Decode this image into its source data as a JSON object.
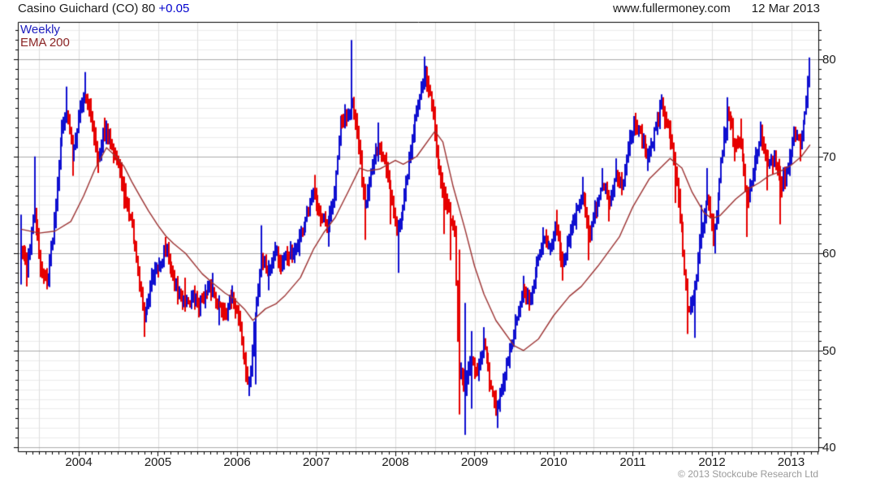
{
  "header": {
    "title": "Casino Guichard (CO) 80 ",
    "change": "+0.05",
    "website": "www.fullermoney.com",
    "date": "12 Mar 2013"
  },
  "legend": {
    "series1": "Weekly",
    "series2": "EMA 200"
  },
  "footer": {
    "copyright": "© 2013 Stockcube Research Ltd"
  },
  "chart_data": {
    "type": "line",
    "style": "weekly_ohlc_bars_with_ema_overlay",
    "title": "Casino Guichard (CO)",
    "last_price": "80",
    "last_change": "+0.05",
    "grid": "on",
    "legend_position": "top-left-inside",
    "colors": {
      "up_bar": "#0f0fd0",
      "down_bar": "#e60000",
      "ema_line": "#9c3232",
      "legend_weekly": "#2020c0",
      "legend_ema": "#8b2525",
      "change_text": "#0000cd"
    },
    "x_axis": {
      "range": [
        2003.23,
        2013.34
      ],
      "tick_years": [
        2004,
        2005,
        2006,
        2007,
        2008,
        2009,
        2010,
        2011,
        2012,
        2013
      ],
      "minor_tick": "monthly",
      "gridline_step_years": 0.5
    },
    "y_axis": {
      "side": "right",
      "range": [
        39.6,
        83.9
      ],
      "ticks": [
        40,
        50,
        60,
        70,
        80
      ],
      "minor_step": 1
    },
    "series": [
      {
        "name": "Weekly",
        "kind": "price_bars",
        "point_format": [
          "t_decimal_year",
          "close",
          "spike_high",
          "spike_low"
        ],
        "points": [
          [
            2003.27,
            60.5,
            64,
            56.8
          ],
          [
            2003.35,
            58.5,
            null,
            56.6
          ],
          [
            2003.44,
            64.5,
            70,
            null
          ],
          [
            2003.52,
            58.5,
            null,
            null
          ],
          [
            2003.6,
            57,
            null,
            56.3
          ],
          [
            2003.69,
            63,
            null,
            null
          ],
          [
            2003.77,
            72,
            null,
            null
          ],
          [
            2003.85,
            75,
            77.2,
            null
          ],
          [
            2003.92,
            70,
            null,
            68
          ],
          [
            2004.02,
            75,
            null,
            null
          ],
          [
            2004.08,
            76.5,
            78.7,
            null
          ],
          [
            2004.17,
            73.5,
            null,
            null
          ],
          [
            2004.25,
            69.5,
            null,
            68.3
          ],
          [
            2004.33,
            72.8,
            74,
            null
          ],
          [
            2004.42,
            71.5,
            null,
            null
          ],
          [
            2004.5,
            69,
            null,
            null
          ],
          [
            2004.58,
            66,
            null,
            64.6
          ],
          [
            2004.67,
            63,
            null,
            null
          ],
          [
            2004.75,
            58,
            null,
            null
          ],
          [
            2004.83,
            53.5,
            null,
            51.4
          ],
          [
            2004.92,
            57,
            58.5,
            null
          ],
          [
            2005.0,
            58.5,
            null,
            null
          ],
          [
            2005.1,
            60.5,
            61.7,
            null
          ],
          [
            2005.19,
            57.5,
            null,
            null
          ],
          [
            2005.27,
            55.5,
            null,
            null
          ],
          [
            2005.35,
            55,
            57.5,
            54
          ],
          [
            2005.44,
            55.3,
            null,
            null
          ],
          [
            2005.52,
            54.8,
            null,
            53.4
          ],
          [
            2005.6,
            55.8,
            null,
            null
          ],
          [
            2005.69,
            56,
            58,
            null
          ],
          [
            2005.77,
            54.5,
            null,
            52.6
          ],
          [
            2005.85,
            54.2,
            null,
            null
          ],
          [
            2005.94,
            55.3,
            56.5,
            null
          ],
          [
            2006.02,
            53.5,
            null,
            null
          ],
          [
            2006.08,
            49.5,
            null,
            null
          ],
          [
            2006.15,
            46.3,
            null,
            45.3
          ],
          [
            2006.23,
            53.5,
            null,
            46.5
          ],
          [
            2006.31,
            59.5,
            62.9,
            null
          ],
          [
            2006.4,
            58,
            null,
            56.2
          ],
          [
            2006.48,
            60.5,
            61.2,
            null
          ],
          [
            2006.56,
            58.5,
            null,
            null
          ],
          [
            2006.65,
            60,
            null,
            null
          ],
          [
            2006.73,
            59.8,
            null,
            59
          ],
          [
            2006.81,
            62,
            null,
            null
          ],
          [
            2006.9,
            64.5,
            null,
            null
          ],
          [
            2006.98,
            66.5,
            68.1,
            null
          ],
          [
            2007.06,
            63.5,
            null,
            null
          ],
          [
            2007.15,
            62.5,
            null,
            60.7
          ],
          [
            2007.23,
            66,
            null,
            null
          ],
          [
            2007.31,
            73.5,
            null,
            null
          ],
          [
            2007.4,
            74.5,
            null,
            null
          ],
          [
            2007.45,
            76,
            82,
            null
          ],
          [
            2007.53,
            71.5,
            null,
            null
          ],
          [
            2007.62,
            65,
            null,
            61.4
          ],
          [
            2007.7,
            68.5,
            null,
            null
          ],
          [
            2007.78,
            71,
            73.5,
            null
          ],
          [
            2007.87,
            69.5,
            null,
            null
          ],
          [
            2007.95,
            66,
            null,
            63
          ],
          [
            2008.03,
            62,
            null,
            58
          ],
          [
            2008.12,
            66.5,
            null,
            null
          ],
          [
            2008.2,
            71,
            null,
            null
          ],
          [
            2008.28,
            75.5,
            null,
            null
          ],
          [
            2008.37,
            78.3,
            80.3,
            null
          ],
          [
            2008.45,
            76,
            null,
            null
          ],
          [
            2008.53,
            70.5,
            null,
            null
          ],
          [
            2008.62,
            65.5,
            null,
            62
          ],
          [
            2008.7,
            63.5,
            null,
            59.3
          ],
          [
            2008.75,
            62.5,
            62.9,
            null
          ],
          [
            2008.8,
            48,
            60.4,
            43.4
          ],
          [
            2008.88,
            46,
            54.9,
            41.3
          ],
          [
            2008.96,
            49,
            52,
            44
          ],
          [
            2009.04,
            47.5,
            null,
            null
          ],
          [
            2009.12,
            50.5,
            52.4,
            null
          ],
          [
            2009.2,
            46.5,
            null,
            null
          ],
          [
            2009.28,
            43.5,
            null,
            42.0
          ],
          [
            2009.37,
            47,
            null,
            null
          ],
          [
            2009.45,
            50,
            null,
            null
          ],
          [
            2009.53,
            53,
            null,
            null
          ],
          [
            2009.61,
            56,
            57.7,
            null
          ],
          [
            2009.7,
            54.8,
            null,
            54.1
          ],
          [
            2009.78,
            58.5,
            null,
            null
          ],
          [
            2009.87,
            61.5,
            62.7,
            null
          ],
          [
            2009.95,
            61,
            null,
            null
          ],
          [
            2010.03,
            62.5,
            64.5,
            null
          ],
          [
            2010.12,
            59,
            null,
            57.2
          ],
          [
            2010.2,
            61.5,
            null,
            null
          ],
          [
            2010.29,
            64.5,
            null,
            null
          ],
          [
            2010.37,
            66.5,
            67.9,
            null
          ],
          [
            2010.45,
            61.5,
            null,
            59.3
          ],
          [
            2010.54,
            65,
            null,
            null
          ],
          [
            2010.62,
            67.5,
            68.8,
            null
          ],
          [
            2010.7,
            64.8,
            null,
            63.3
          ],
          [
            2010.79,
            68,
            69.8,
            null
          ],
          [
            2010.87,
            67,
            null,
            66
          ],
          [
            2010.95,
            71,
            null,
            null
          ],
          [
            2011.04,
            73.5,
            74.5,
            null
          ],
          [
            2011.12,
            72,
            null,
            null
          ],
          [
            2011.2,
            70,
            null,
            68.5
          ],
          [
            2011.29,
            73,
            null,
            null
          ],
          [
            2011.37,
            75.3,
            76.4,
            null
          ],
          [
            2011.45,
            73,
            null,
            null
          ],
          [
            2011.54,
            69,
            null,
            65.2
          ],
          [
            2011.62,
            62,
            null,
            null
          ],
          [
            2011.7,
            54,
            null,
            51.7
          ],
          [
            2011.78,
            55.5,
            null,
            51.3
          ],
          [
            2011.87,
            62.5,
            65,
            null
          ],
          [
            2011.95,
            66,
            68.8,
            null
          ],
          [
            2012.03,
            61.5,
            null,
            60
          ],
          [
            2012.12,
            70,
            null,
            null
          ],
          [
            2012.2,
            74.5,
            76.1,
            null
          ],
          [
            2012.29,
            71.5,
            null,
            69.5
          ],
          [
            2012.37,
            71,
            73.9,
            null
          ],
          [
            2012.45,
            65.5,
            null,
            61.7
          ],
          [
            2012.54,
            69,
            null,
            null
          ],
          [
            2012.62,
            72,
            73.6,
            null
          ],
          [
            2012.7,
            69.5,
            null,
            66.5
          ],
          [
            2012.79,
            69.5,
            null,
            null
          ],
          [
            2012.87,
            67,
            null,
            63
          ],
          [
            2012.95,
            68.5,
            null,
            null
          ],
          [
            2013.04,
            72,
            73.1,
            null
          ],
          [
            2013.12,
            71,
            null,
            69.5
          ],
          [
            2013.18,
            74.5,
            null,
            null
          ],
          [
            2013.24,
            80.05,
            80.2,
            77.5
          ]
        ]
      },
      {
        "name": "EMA 200",
        "kind": "line",
        "point_format": [
          "t_decimal_year",
          "value"
        ],
        "points": [
          [
            2003.27,
            62.5
          ],
          [
            2003.5,
            62.1
          ],
          [
            2003.7,
            62.3
          ],
          [
            2003.9,
            63.3
          ],
          [
            2004.06,
            65.9
          ],
          [
            2004.2,
            68.6
          ],
          [
            2004.35,
            70.9
          ],
          [
            2004.47,
            70.0
          ],
          [
            2004.57,
            69.0
          ],
          [
            2004.67,
            67.4
          ],
          [
            2004.78,
            65.8
          ],
          [
            2004.88,
            64.4
          ],
          [
            2005.0,
            62.9
          ],
          [
            2005.1,
            61.8
          ],
          [
            2005.2,
            61.0
          ],
          [
            2005.35,
            60.0
          ],
          [
            2005.56,
            57.9
          ],
          [
            2005.7,
            56.9
          ],
          [
            2005.85,
            55.9
          ],
          [
            2005.95,
            55.4
          ],
          [
            2006.1,
            54.2
          ],
          [
            2006.2,
            53.1
          ],
          [
            2006.36,
            54.3
          ],
          [
            2006.49,
            54.8
          ],
          [
            2006.6,
            55.6
          ],
          [
            2006.8,
            57.5
          ],
          [
            2006.97,
            60.5
          ],
          [
            2007.1,
            62.2
          ],
          [
            2007.24,
            63.7
          ],
          [
            2007.4,
            66.3
          ],
          [
            2007.55,
            68.8
          ],
          [
            2007.65,
            68.5
          ],
          [
            2007.8,
            68.7
          ],
          [
            2008.0,
            69.6
          ],
          [
            2008.1,
            69.2
          ],
          [
            2008.27,
            70.0
          ],
          [
            2008.5,
            72.6
          ],
          [
            2008.6,
            71.5
          ],
          [
            2008.73,
            66.9
          ],
          [
            2008.88,
            62.5
          ],
          [
            2009.0,
            58.7
          ],
          [
            2009.12,
            55.8
          ],
          [
            2009.27,
            53.1
          ],
          [
            2009.5,
            50.5
          ],
          [
            2009.62,
            50.0
          ],
          [
            2009.81,
            51.2
          ],
          [
            2010.0,
            53.6
          ],
          [
            2010.2,
            55.6
          ],
          [
            2010.35,
            56.6
          ],
          [
            2010.56,
            58.7
          ],
          [
            2010.83,
            61.7
          ],
          [
            2011.0,
            64.8
          ],
          [
            2011.21,
            67.7
          ],
          [
            2011.47,
            69.8
          ],
          [
            2011.62,
            68.8
          ],
          [
            2011.75,
            66.3
          ],
          [
            2011.9,
            64.2
          ],
          [
            2012.0,
            63.6
          ],
          [
            2012.1,
            63.9
          ],
          [
            2012.3,
            65.6
          ],
          [
            2012.45,
            66.6
          ],
          [
            2012.6,
            67.3
          ],
          [
            2012.72,
            68.0
          ],
          [
            2012.85,
            68.4
          ],
          [
            2013.0,
            69.1
          ],
          [
            2013.13,
            70.0
          ],
          [
            2013.24,
            71.2
          ]
        ]
      }
    ]
  }
}
